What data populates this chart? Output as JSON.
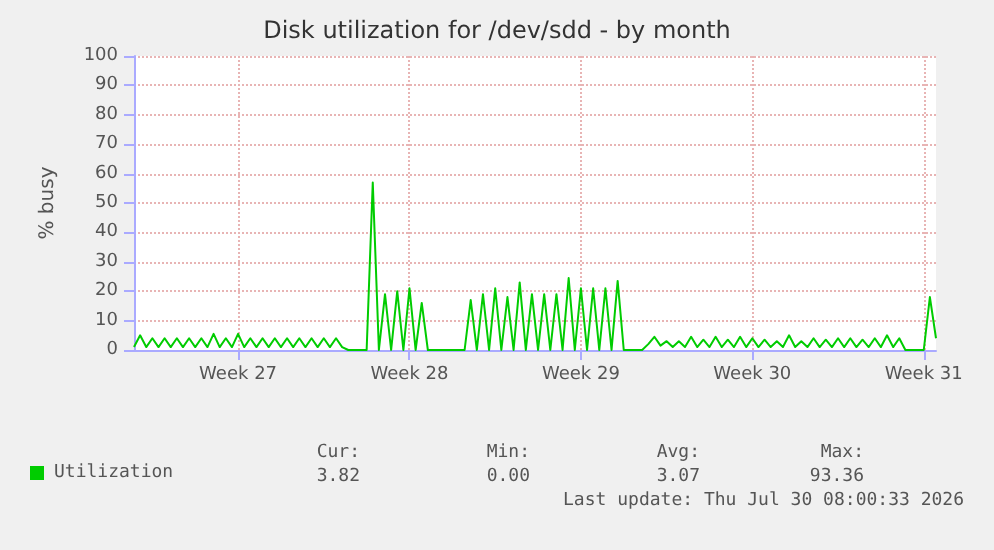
{
  "chart_data": {
    "type": "line",
    "title": "Disk utilization for /dev/sdd - by month",
    "ylabel": "% busy",
    "categories": [
      null,
      null,
      null,
      null,
      null,
      null,
      null,
      null,
      null,
      null,
      null,
      null,
      null,
      null,
      null,
      null,
      null,
      "Week 27",
      null,
      null,
      null,
      null,
      null,
      null,
      null,
      null,
      null,
      null,
      null,
      null,
      null,
      null,
      null,
      null,
      null,
      null,
      null,
      null,
      null,
      null,
      null,
      null,
      null,
      null,
      null,
      "Week 28",
      null,
      null,
      null,
      null,
      null,
      null,
      null,
      null,
      null,
      null,
      null,
      null,
      null,
      null,
      null,
      null,
      null,
      null,
      null,
      null,
      null,
      null,
      null,
      null,
      null,
      null,
      null,
      "Week 29",
      null,
      null,
      null,
      null,
      null,
      null,
      null,
      null,
      null,
      null,
      null,
      null,
      null,
      null,
      null,
      null,
      null,
      null,
      null,
      null,
      null,
      null,
      null,
      null,
      null,
      null,
      null,
      "Week 30",
      null,
      null,
      null,
      null,
      null,
      null,
      null,
      null,
      null,
      null,
      null,
      null,
      null,
      null,
      null,
      null,
      null,
      null,
      null,
      null,
      null,
      null,
      null,
      null,
      null,
      null,
      null,
      "Week 31",
      null,
      null
    ],
    "ylim": [
      0,
      100
    ],
    "yticks": [
      0,
      10,
      20,
      30,
      40,
      50,
      60,
      70,
      80,
      90,
      100
    ],
    "grid": true,
    "legend": "bottom",
    "marker": "none",
    "line_style": "solid",
    "series": [
      {
        "name": "Utilization",
        "color": "#00cc00",
        "values": [
          1,
          5,
          1,
          4,
          1,
          4,
          1,
          4,
          1,
          4,
          1,
          4,
          1,
          5.5,
          1,
          4,
          1,
          5.5,
          1,
          4,
          1,
          4,
          1,
          4,
          1,
          4,
          1,
          4,
          1,
          4,
          1,
          4,
          1,
          4,
          1,
          0,
          0,
          0,
          0,
          57,
          0,
          19,
          0,
          20,
          0,
          21,
          0,
          16,
          0,
          0,
          0,
          0,
          0,
          0,
          0,
          17,
          0,
          19,
          0,
          21,
          0,
          18,
          0,
          23,
          0,
          19,
          0,
          19,
          0,
          19,
          0,
          24.5,
          0,
          21,
          0,
          21,
          0,
          21,
          0,
          23.5,
          0,
          0,
          0,
          0,
          2,
          4.5,
          1.5,
          3,
          1,
          3,
          1,
          4.5,
          1,
          3.5,
          1,
          4.5,
          1,
          3.5,
          1,
          4.5,
          1,
          4,
          1,
          3.5,
          1,
          3,
          1,
          5,
          1,
          3,
          1,
          4,
          1,
          3.5,
          1,
          4,
          1,
          4,
          1,
          3.5,
          1,
          4,
          1,
          5,
          1,
          4,
          0,
          0,
          0,
          0,
          18,
          4
        ]
      }
    ],
    "annotations": [
      "Cur:",
      "Min:",
      "Avg:",
      "Max:",
      "3.82",
      "0.00",
      "3.07",
      "93.36",
      "Last update: Thu Jul 30 08:00:33 2026"
    ]
  }
}
